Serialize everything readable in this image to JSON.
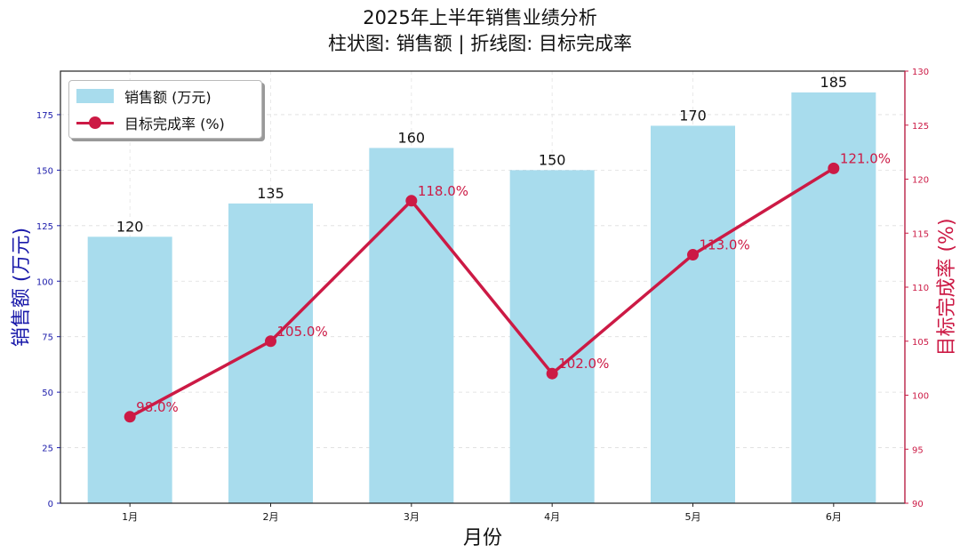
{
  "title": {
    "line1": "2025年上半年销售业绩分析",
    "line2": "柱状图: 销售额 | 折线图: 目标完成率"
  },
  "axes": {
    "xlabel": "月份",
    "ylabel_left": "销售额 (万元)",
    "ylabel_right": "目标完成率 (%)",
    "left_ticks": [
      "0",
      "25",
      "50",
      "75",
      "100",
      "125",
      "150",
      "175"
    ],
    "right_ticks": [
      "90",
      "95",
      "100",
      "105",
      "110",
      "115",
      "120",
      "125",
      "130"
    ],
    "x_ticks": [
      "1月",
      "2月",
      "3月",
      "4月",
      "5月",
      "6月"
    ]
  },
  "legend": {
    "bar_label": "销售额 (万元)",
    "line_label": "目标完成率 (%)"
  },
  "colors": {
    "bar": "#a8dced",
    "line": "#cc1a45",
    "left_axis": "#1a1aaa",
    "right_axis": "#cc1a45"
  },
  "bar_labels": [
    "120",
    "135",
    "160",
    "150",
    "170",
    "185"
  ],
  "line_labels": [
    "98.0%",
    "105.0%",
    "118.0%",
    "102.0%",
    "113.0%",
    "121.0%"
  ],
  "chart_data": {
    "type": "bar",
    "title": "2025年上半年销售业绩分析\n柱状图: 销售额 | 折线图: 目标完成率",
    "categories": [
      "1月",
      "2月",
      "3月",
      "4月",
      "5月",
      "6月"
    ],
    "series": [
      {
        "name": "销售额 (万元)",
        "type": "bar",
        "axis": "left",
        "values": [
          120,
          135,
          160,
          150,
          170,
          185
        ]
      },
      {
        "name": "目标完成率 (%)",
        "type": "line",
        "axis": "right",
        "values": [
          98.0,
          105.0,
          118.0,
          102.0,
          113.0,
          121.0
        ]
      }
    ],
    "xlabel": "月份",
    "ylabel": "销售额 (万元)",
    "ylabel_right": "目标完成率 (%)",
    "ylim": [
      0,
      194.6
    ],
    "ylim_right": [
      90,
      130
    ],
    "grid": true,
    "legend_position": "upper left"
  }
}
